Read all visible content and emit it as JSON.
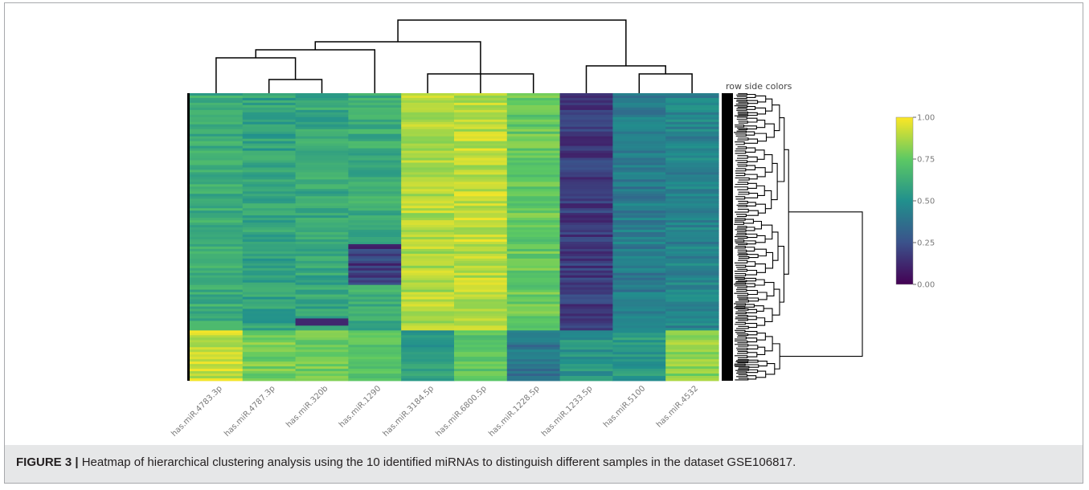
{
  "figure": {
    "label": "FIGURE 3 |",
    "caption": " Heatmap of hierarchical clustering analysis using the 10 identified miRNAs to distinguish different samples in the dataset GSE106817."
  },
  "colors": {
    "viridis": [
      "#440154",
      "#3b528b",
      "#21908d",
      "#5dc963",
      "#fde725"
    ],
    "dendrogram": "#000000",
    "caption_background": "#e6e7e8"
  },
  "chart_data": {
    "type": "heatmap",
    "row_side_label": "row side colors",
    "columns": [
      "has.miR.4783.3p",
      "has.miR.4787.3p",
      "has.miR.320b",
      "has.miR.1290",
      "has.miR.3184.5p",
      "has.miR.6800.5p",
      "has.miR.1228.5p",
      "has.miR.1233.5p",
      "has.miR.5100",
      "has.miR.4532"
    ],
    "column_mean_values": {
      "upper_block": [
        0.62,
        0.58,
        0.6,
        0.62,
        0.88,
        0.9,
        0.76,
        0.18,
        0.42,
        0.45
      ],
      "lower_block": [
        0.92,
        0.78,
        0.78,
        0.72,
        0.55,
        0.72,
        0.4,
        0.52,
        0.55,
        0.82
      ]
    },
    "colorbar": {
      "range": [
        0,
        1
      ],
      "ticks": [
        "1.00",
        "0.75",
        "0.50",
        "0.25",
        "0.00"
      ],
      "colormap": "viridis"
    }
  }
}
